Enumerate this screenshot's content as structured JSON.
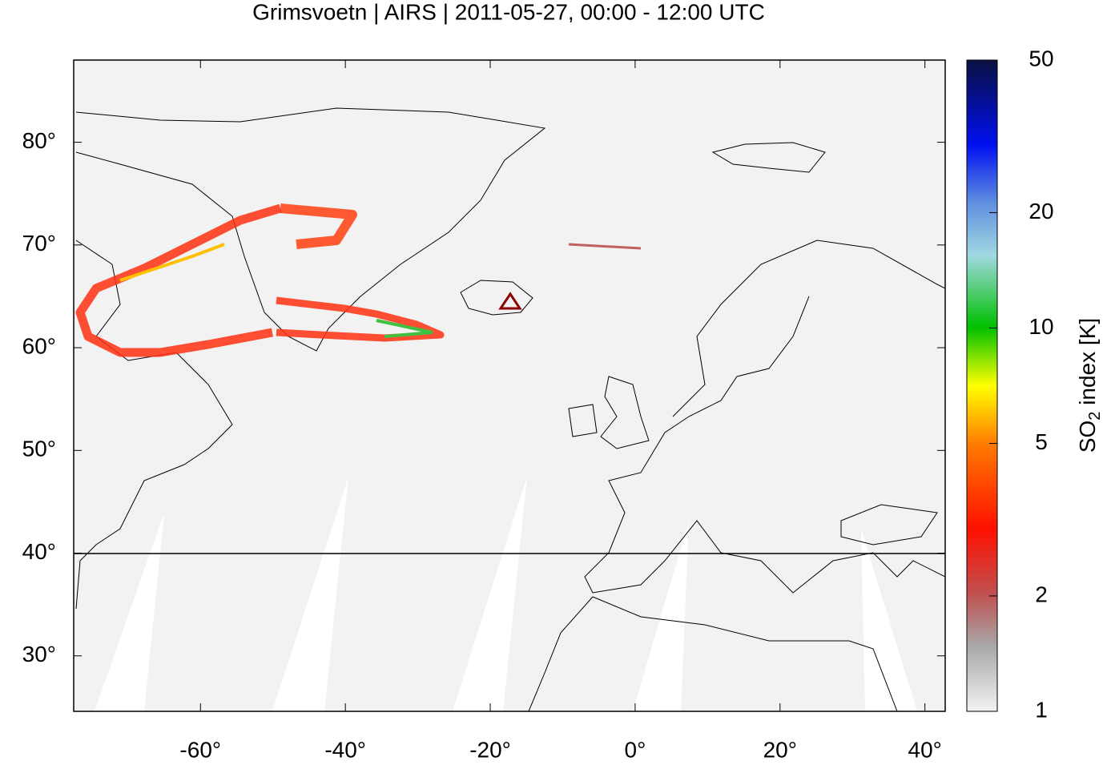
{
  "map": {
    "title": "Grimsvoetn | AIRS | 2011-05-27, 00:00 - 12:00 UTC",
    "xlim": [
      -77.5,
      42.8
    ],
    "ylim": [
      24.6,
      88.0
    ],
    "xticks": [
      {
        "value": -60,
        "label": "-60°"
      },
      {
        "value": -40,
        "label": "-40°"
      },
      {
        "value": -20,
        "label": "-20°"
      },
      {
        "value": 0,
        "label": "0°"
      },
      {
        "value": 20,
        "label": "20°"
      },
      {
        "value": 40,
        "label": "40°"
      }
    ],
    "yticks": [
      {
        "value": 30,
        "label": "30°"
      },
      {
        "value": 40,
        "label": "40°"
      },
      {
        "value": 50,
        "label": "50°"
      },
      {
        "value": 60,
        "label": "60°"
      },
      {
        "value": 70,
        "label": "70°"
      },
      {
        "value": 80,
        "label": "80°"
      }
    ],
    "colorbar": {
      "label_main": "SO",
      "label_sub": "2",
      "label_rest": " index [K]",
      "lim": [
        1,
        50
      ],
      "log": true,
      "ticks": [
        1,
        2,
        5,
        10,
        20,
        50
      ]
    }
  }
}
